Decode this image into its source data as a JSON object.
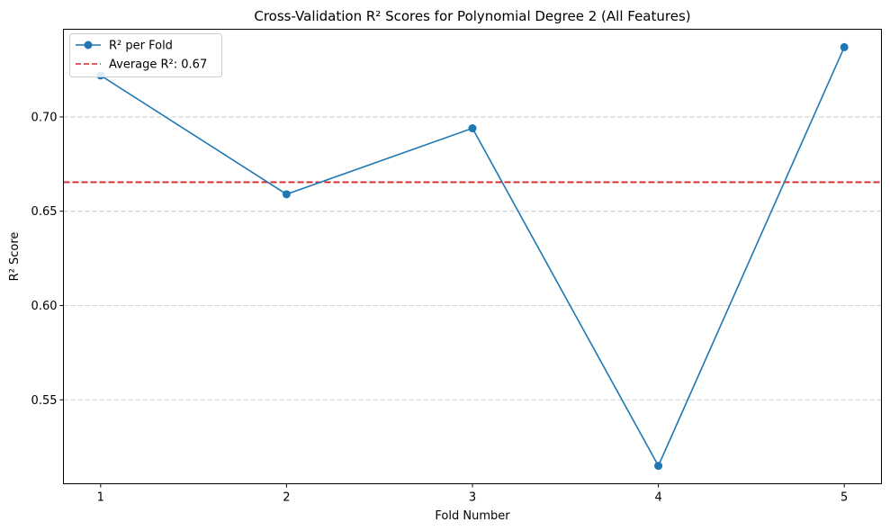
{
  "chart_data": {
    "type": "line",
    "title": "Cross-Validation R² Scores for Polynomial Degree 2 (All Features)",
    "xlabel": "Fold Number",
    "ylabel": "R² Score",
    "x": [
      1,
      2,
      3,
      4,
      5
    ],
    "xticks": [
      "1",
      "2",
      "3",
      "4",
      "5"
    ],
    "xlim": [
      0.8,
      5.2
    ],
    "ylim": [
      0.5055,
      0.7465
    ],
    "yticks": [
      0.55,
      0.6,
      0.65,
      0.7
    ],
    "ytick_labels": [
      "0.55",
      "0.60",
      "0.65",
      "0.70"
    ],
    "grid": {
      "y": true,
      "x": false
    },
    "series": [
      {
        "name": "R² per Fold",
        "values": [
          0.722,
          0.659,
          0.694,
          0.515,
          0.737
        ],
        "color": "#1f77b4"
      }
    ],
    "reference_line": {
      "label": "Average R²: 0.67",
      "value": 0.6654,
      "color": "#d62728",
      "style": "dashed"
    },
    "legend": {
      "position": "top-left",
      "entries": [
        "R² per Fold",
        "Average R²: 0.67"
      ]
    }
  }
}
